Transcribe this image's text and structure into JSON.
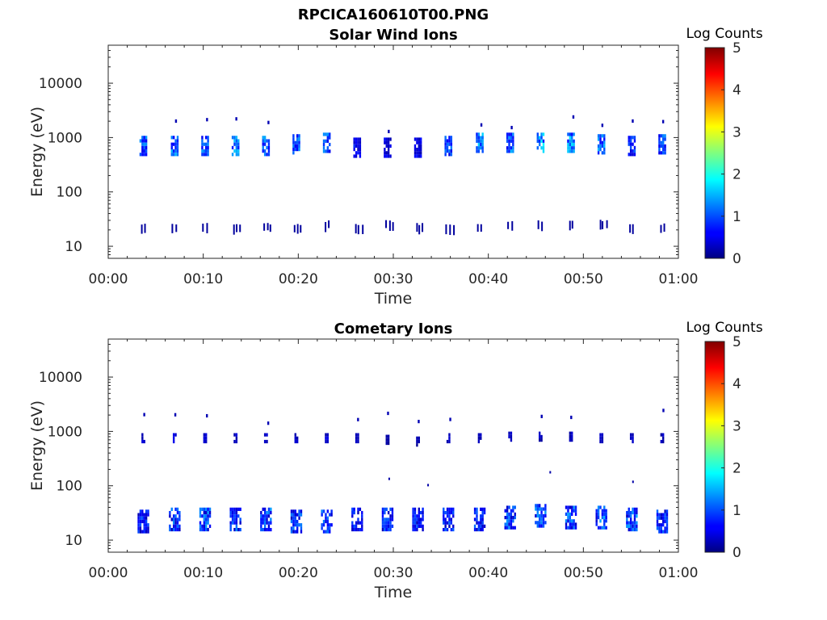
{
  "figure": {
    "suptitle": "RPCICA160610T00.PNG"
  },
  "chart_data": [
    {
      "type": "heatmap",
      "title": "Solar Wind Ions",
      "xlabel": "Time",
      "ylabel": "Energy (eV)",
      "x_ticks": [
        "00:00",
        "00:10",
        "00:20",
        "00:30",
        "00:40",
        "00:50",
        "01:00"
      ],
      "xlim_minutes": [
        0,
        60
      ],
      "y_scale": "log",
      "y_ticks": [
        "10",
        "100",
        "1000",
        "10000"
      ],
      "ylim": [
        6,
        50000
      ],
      "colorbar": {
        "label": "Log Counts",
        "ticks": [
          "0",
          "1",
          "2",
          "3",
          "4",
          "5"
        ],
        "range": [
          0,
          5
        ],
        "colormap": "jet"
      },
      "bursts": [
        {
          "t": 3.7,
          "e": 700,
          "level": 1.0,
          "low_e": 22
        },
        {
          "t": 7.0,
          "e": 700,
          "level": 1.1,
          "low_e": 22
        },
        {
          "t": 10.2,
          "e": 700,
          "level": 1.0,
          "low_e": 22
        },
        {
          "t": 13.4,
          "e": 700,
          "level": 1.2,
          "low_e": 22
        },
        {
          "t": 16.6,
          "e": 700,
          "level": 1.1,
          "low_e": 22
        },
        {
          "t": 19.8,
          "e": 750,
          "level": 1.0,
          "low_e": 22
        },
        {
          "t": 23.0,
          "e": 800,
          "level": 1.0,
          "low_e": 25
        },
        {
          "t": 26.2,
          "e": 650,
          "level": 0.6,
          "low_e": 22
        },
        {
          "t": 29.4,
          "e": 650,
          "level": 0.5,
          "low_e": 25
        },
        {
          "t": 32.6,
          "e": 650,
          "level": 0.5,
          "low_e": 22
        },
        {
          "t": 35.8,
          "e": 700,
          "level": 0.9,
          "low_e": 22
        },
        {
          "t": 39.1,
          "e": 800,
          "level": 1.2,
          "low_e": 22
        },
        {
          "t": 42.3,
          "e": 800,
          "level": 1.1,
          "low_e": 25
        },
        {
          "t": 45.5,
          "e": 800,
          "level": 1.4,
          "low_e": 25
        },
        {
          "t": 48.7,
          "e": 800,
          "level": 1.3,
          "low_e": 25
        },
        {
          "t": 51.9,
          "e": 750,
          "level": 1.1,
          "low_e": 25
        },
        {
          "t": 55.1,
          "e": 700,
          "level": 0.8,
          "low_e": 22
        },
        {
          "t": 58.3,
          "e": 750,
          "level": 1.0,
          "low_e": 22
        }
      ]
    },
    {
      "type": "heatmap",
      "title": "Cometary Ions",
      "xlabel": "Time",
      "ylabel": "Energy (eV)",
      "x_ticks": [
        "00:00",
        "00:10",
        "00:20",
        "00:30",
        "00:40",
        "00:50",
        "01:00"
      ],
      "xlim_minutes": [
        0,
        60
      ],
      "y_scale": "log",
      "y_ticks": [
        "10",
        "100",
        "1000",
        "10000"
      ],
      "ylim": [
        6,
        50000
      ],
      "colorbar": {
        "label": "Log Counts",
        "ticks": [
          "0",
          "1",
          "2",
          "3",
          "4",
          "5"
        ],
        "range": [
          0,
          5
        ],
        "colormap": "jet"
      },
      "bursts": [
        {
          "t": 3.7,
          "e": 750,
          "level": 0.4,
          "low_e": 22,
          "low_level": 0.8
        },
        {
          "t": 7.0,
          "e": 750,
          "level": 0.4,
          "low_e": 24,
          "low_level": 1.0
        },
        {
          "t": 10.2,
          "e": 750,
          "level": 0.4,
          "low_e": 24,
          "low_level": 1.1
        },
        {
          "t": 13.4,
          "e": 750,
          "level": 0.4,
          "low_e": 24,
          "low_level": 1.0
        },
        {
          "t": 16.6,
          "e": 750,
          "level": 0.4,
          "low_e": 24,
          "low_level": 1.1
        },
        {
          "t": 19.8,
          "e": 750,
          "level": 0.4,
          "low_e": 22,
          "low_level": 1.0
        },
        {
          "t": 23.0,
          "e": 750,
          "level": 0.4,
          "low_e": 22,
          "low_level": 1.0
        },
        {
          "t": 26.2,
          "e": 750,
          "level": 0.3,
          "low_e": 24,
          "low_level": 0.8
        },
        {
          "t": 29.4,
          "e": 700,
          "level": 0.2,
          "low_e": 24,
          "low_level": 0.9
        },
        {
          "t": 32.6,
          "e": 650,
          "level": 0.2,
          "low_e": 24,
          "low_level": 0.8
        },
        {
          "t": 35.8,
          "e": 750,
          "level": 0.3,
          "low_e": 24,
          "low_level": 0.9
        },
        {
          "t": 39.1,
          "e": 750,
          "level": 0.3,
          "low_e": 24,
          "low_level": 1.0
        },
        {
          "t": 42.3,
          "e": 800,
          "level": 0.3,
          "low_e": 26,
          "low_level": 1.1
        },
        {
          "t": 45.5,
          "e": 800,
          "level": 0.3,
          "low_e": 28,
          "low_level": 1.1
        },
        {
          "t": 48.7,
          "e": 800,
          "level": 0.3,
          "low_e": 26,
          "low_level": 1.1
        },
        {
          "t": 51.9,
          "e": 750,
          "level": 0.3,
          "low_e": 26,
          "low_level": 1.2
        },
        {
          "t": 55.1,
          "e": 750,
          "level": 0.3,
          "low_e": 24,
          "low_level": 1.1
        },
        {
          "t": 58.3,
          "e": 750,
          "level": 0.3,
          "low_e": 22,
          "low_level": 0.9
        }
      ]
    }
  ]
}
